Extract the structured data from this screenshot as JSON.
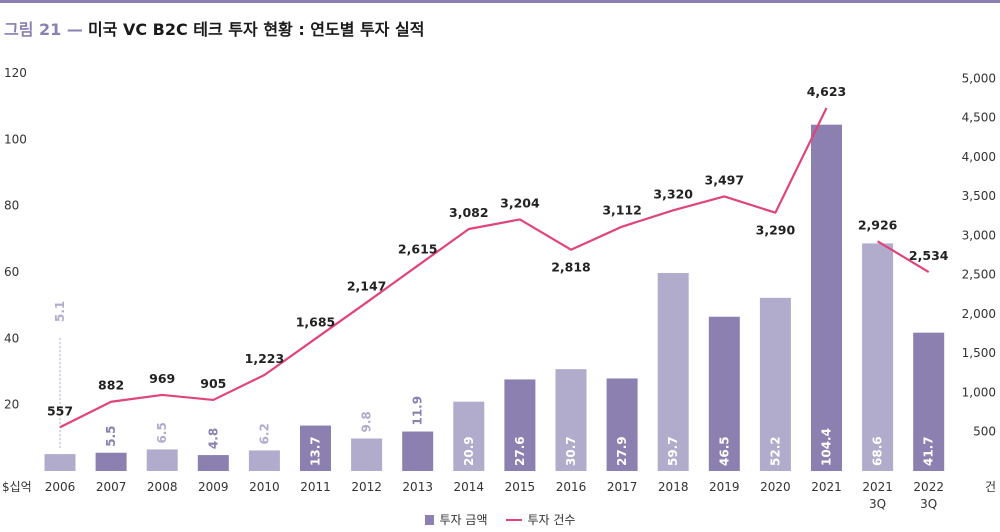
{
  "title": {
    "figure_label": "그림 21 —",
    "text": "미국 VC B2C 테크 투자 현황 : 연도별 투자 실적"
  },
  "colors": {
    "bar_dark": "#8b80b0",
    "bar_light": "#b1abcc",
    "line": "#e0457a",
    "title_accent": "#8b80b0"
  },
  "chart_data": {
    "type": "bar",
    "categories": [
      "2006",
      "2007",
      "2008",
      "2009",
      "2010",
      "2011",
      "2012",
      "2013",
      "2014",
      "2015",
      "2016",
      "2017",
      "2018",
      "2019",
      "2020",
      "2021",
      "2021\n3Q",
      "2022\n3Q"
    ],
    "series": [
      {
        "name": "투자 금액",
        "type": "bar",
        "axis": "left",
        "values": [
          5.1,
          5.5,
          6.5,
          4.8,
          6.2,
          13.7,
          9.8,
          11.9,
          20.9,
          27.6,
          30.7,
          27.9,
          59.7,
          46.5,
          52.2,
          104.4,
          68.6,
          41.7
        ],
        "labels": [
          "5.1",
          "5.5",
          "6.5",
          "4.8",
          "6.2",
          "13.7",
          "9.8",
          "11.9",
          "20.9",
          "27.6",
          "30.7",
          "27.9",
          "59.7",
          "46.5",
          "52.2",
          "104.4",
          "68.6",
          "41.7"
        ],
        "shade": [
          "light",
          "dark",
          "light",
          "dark",
          "light",
          "dark",
          "light",
          "dark",
          "light",
          "dark",
          "light",
          "dark",
          "light",
          "dark",
          "light",
          "dark",
          "light",
          "dark"
        ]
      },
      {
        "name": "투자 건수",
        "type": "line",
        "axis": "right",
        "values": [
          557,
          882,
          969,
          905,
          1223,
          1685,
          2147,
          2615,
          3082,
          3204,
          2818,
          3112,
          3320,
          3497,
          3290,
          4623,
          2926,
          2534
        ],
        "labels": [
          "557",
          "882",
          "969",
          "905",
          "1,223",
          "1,685",
          "2,147",
          "2,615",
          "3,082",
          "3,204",
          "2,818",
          "3,112",
          "3,320",
          "3,497",
          "3,290",
          "4,623",
          "2,926",
          "2,534"
        ],
        "segments": [
          [
            0,
            15
          ],
          [
            16,
            17
          ]
        ]
      }
    ],
    "y_left": {
      "unit_label": "$십억",
      "ticks": [
        20,
        40,
        60,
        80,
        100,
        120
      ],
      "range": [
        0,
        124.5
      ]
    },
    "y_right": {
      "unit_label": "건",
      "ticks": [
        500,
        1000,
        1500,
        2000,
        2500,
        3000,
        3500,
        4000,
        4500,
        5000
      ],
      "tick_labels": [
        "500",
        "1,000",
        "1,500",
        "2,000",
        "2,500",
        "3,000",
        "3,500",
        "4,000",
        "4,500",
        "5,000"
      ],
      "range": [
        0,
        5260
      ]
    },
    "legend": {
      "position": "bottom-center",
      "items": [
        "투자 금액",
        "투자 건수"
      ]
    },
    "grid": false
  }
}
